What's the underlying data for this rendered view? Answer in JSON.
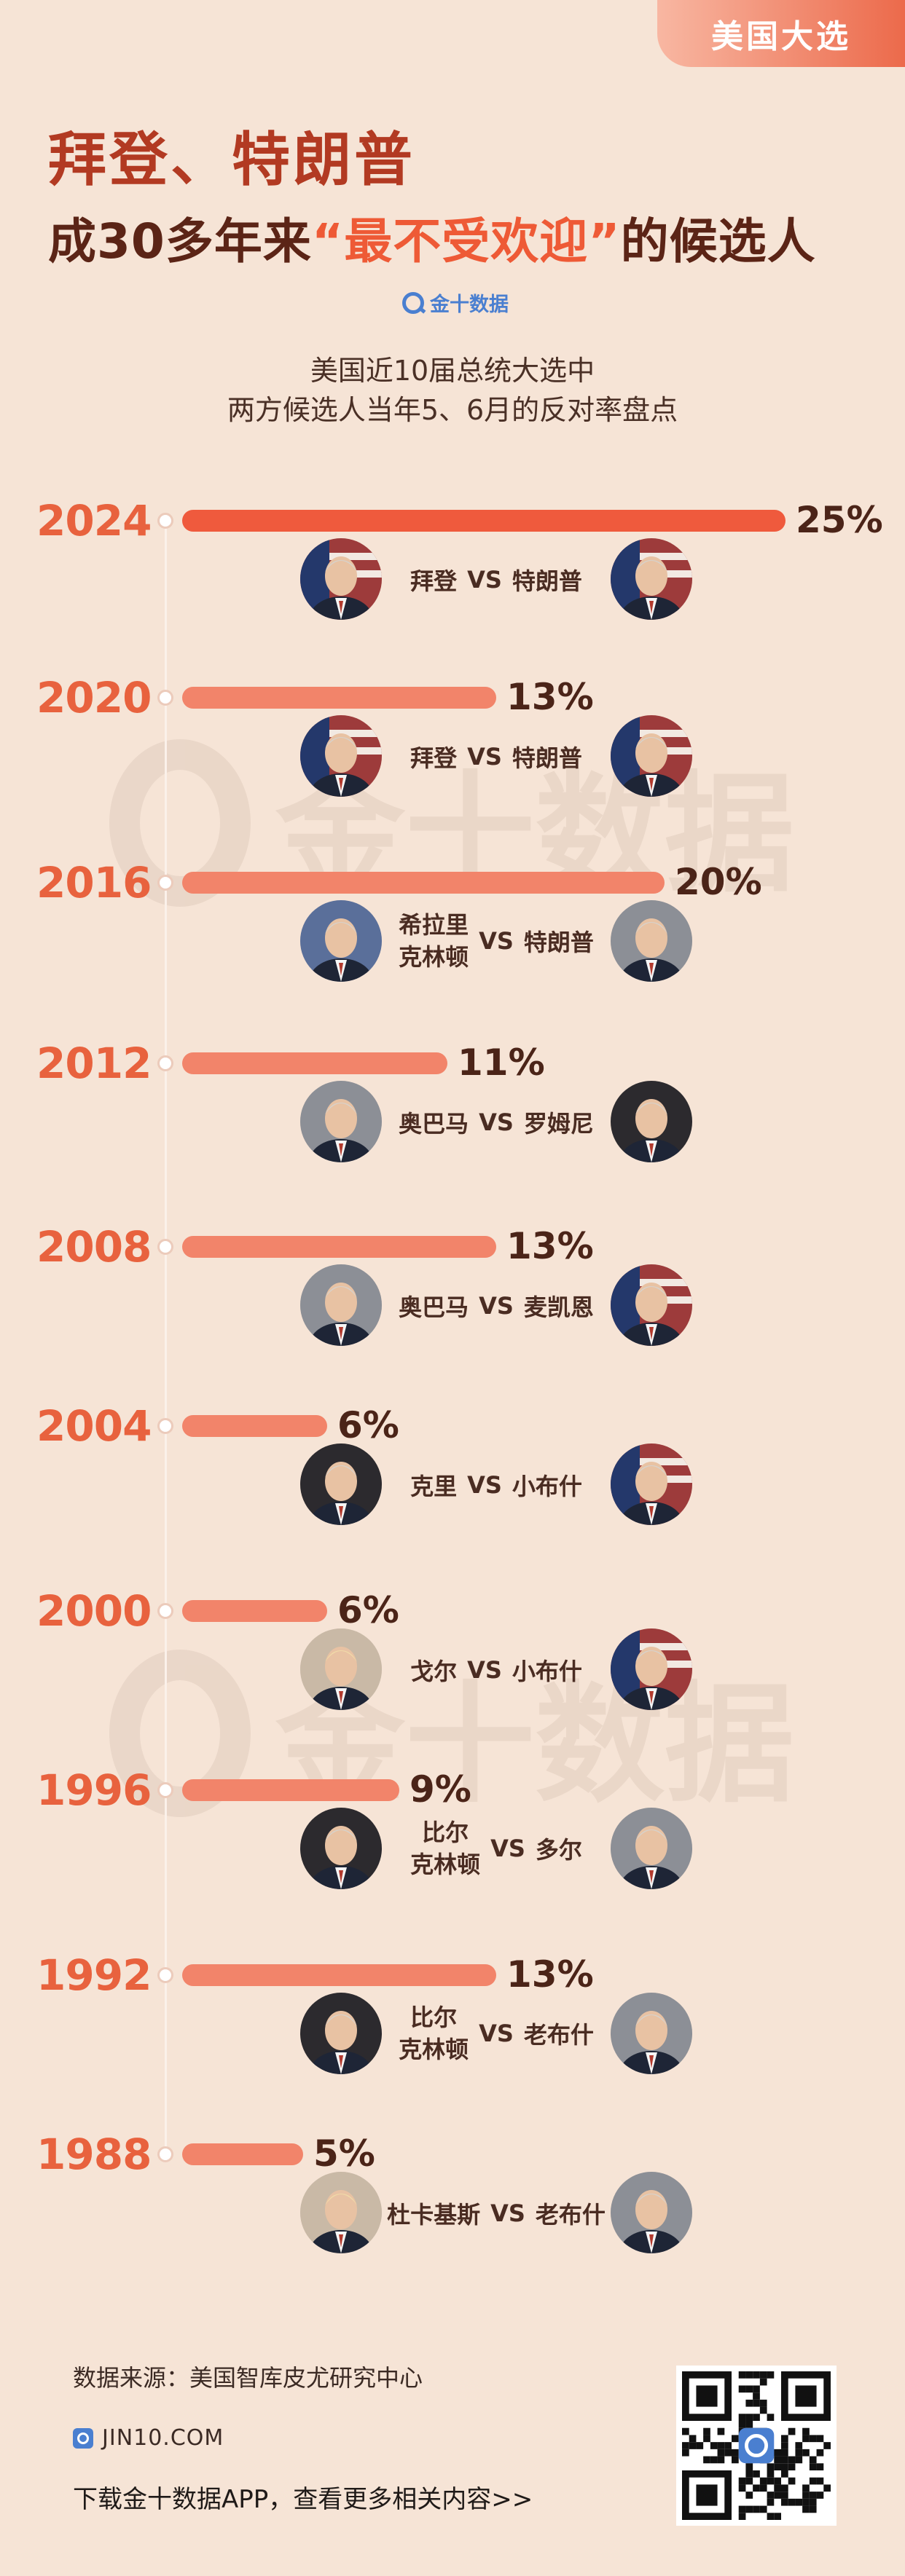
{
  "tag": "美国大选",
  "header": {
    "title_line1": "拜登、特朗普",
    "title_line2_pre": "成30多年来",
    "title_line2_highlight": "“最不受欢迎”",
    "title_line2_post": "的候选人",
    "logo_text": "金十数据",
    "subtitle_line1": "美国近10届总统大选中",
    "subtitle_line2": "两方候选人当年5、6月的反对率盘点"
  },
  "watermark_text": "金十数据",
  "colors": {
    "background": "#f6e4d6",
    "bar": "#f2846a",
    "bar_highlight": "#ef5a3d",
    "year": "#e8623e",
    "title": "#b23a22",
    "highlight": "#ee5a36",
    "logo": "#4a7fd0"
  },
  "chart_data": {
    "type": "bar",
    "orientation": "horizontal",
    "categories": [
      "2024",
      "2020",
      "2016",
      "2012",
      "2008",
      "2004",
      "2000",
      "1996",
      "1992",
      "1988"
    ],
    "values": [
      25,
      13,
      20,
      11,
      13,
      6,
      6,
      9,
      13,
      5
    ],
    "value_labels": [
      "25%",
      "13%",
      "20%",
      "11%",
      "13%",
      "6%",
      "6%",
      "9%",
      "13%",
      "5%"
    ],
    "unit": "%",
    "xlim": [
      0,
      25
    ],
    "matchups": [
      {
        "left": "拜登",
        "vs": "VS",
        "right": "特朗普"
      },
      {
        "left": "拜登",
        "vs": "VS",
        "right": "特朗普"
      },
      {
        "left": "希拉里克林顿",
        "left_lines": [
          "希拉里",
          "克林顿"
        ],
        "vs": "VS",
        "right": "特朗普"
      },
      {
        "left": "奥巴马",
        "vs": "VS",
        "right": "罗姆尼"
      },
      {
        "left": "奥巴马",
        "vs": "VS",
        "right": "麦凯恩"
      },
      {
        "left": "克里",
        "vs": "VS",
        "right": "小布什"
      },
      {
        "left": "戈尔",
        "vs": "VS",
        "right": "小布什"
      },
      {
        "left": "比尔克林顿",
        "left_lines": [
          "比尔",
          "克林顿"
        ],
        "vs": "VS",
        "right": "多尔"
      },
      {
        "left": "比尔克林顿",
        "left_lines": [
          "比尔",
          "克林顿"
        ],
        "vs": "VS",
        "right": "老布什"
      },
      {
        "left": "杜卡基斯",
        "vs": "VS",
        "right": "老布什"
      }
    ]
  },
  "footer": {
    "source": "数据来源：美国智库皮尤研究中心",
    "website": "JIN10.COM",
    "download": "下载金十数据APP，查看更多相关内容>>"
  }
}
